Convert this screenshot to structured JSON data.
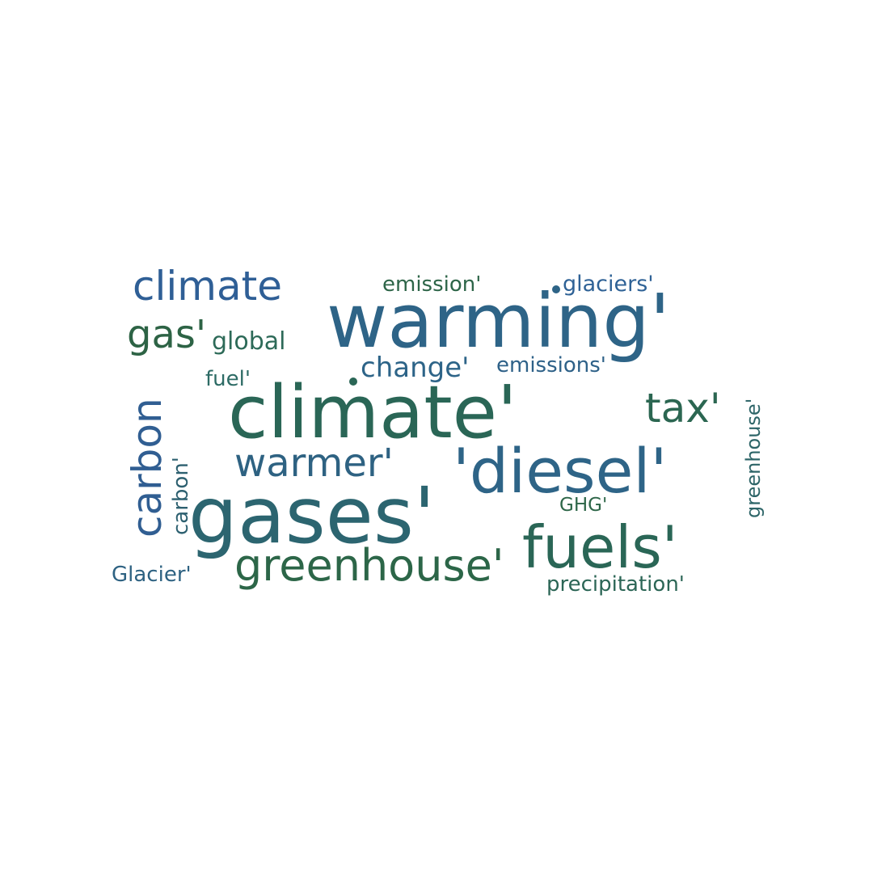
{
  "words": [
    {
      "text": "warming'",
      "color": "#2e6487"
    },
    {
      "text": "climate'",
      "color": "#2a6656"
    },
    {
      "text": "gases'",
      "color": "#2c6570"
    },
    {
      "text": "'diesel'",
      "color": "#2e6487"
    },
    {
      "text": "fuels'",
      "color": "#2a6656"
    },
    {
      "text": "greenhouse'",
      "color": "#2c6648"
    },
    {
      "text": "climate",
      "color": "#2f5f96"
    },
    {
      "text": "carbon",
      "color": "#305e92"
    },
    {
      "text": "gas'",
      "color": "#2d6345"
    },
    {
      "text": "warmer'",
      "color": "#2e6282"
    },
    {
      "text": "tax'",
      "color": "#2b6651"
    },
    {
      "text": "change'",
      "color": "#2d6488"
    },
    {
      "text": "global",
      "color": "#2d6a58"
    },
    {
      "text": "fuel'",
      "color": "#2d6b65"
    },
    {
      "text": "emission'",
      "color": "#2d6548"
    },
    {
      "text": "glaciers'",
      "color": "#2f6296"
    },
    {
      "text": "emissions'",
      "color": "#2e6188"
    },
    {
      "text": "carbon'",
      "color": "#2d6070"
    },
    {
      "text": "GHG'",
      "color": "#2d6648"
    },
    {
      "text": "Glacier'",
      "color": "#2e6282"
    },
    {
      "text": "precipitation'",
      "color": "#2c6656"
    },
    {
      "text": "greenhouse'",
      "color": "#2d6568"
    }
  ]
}
